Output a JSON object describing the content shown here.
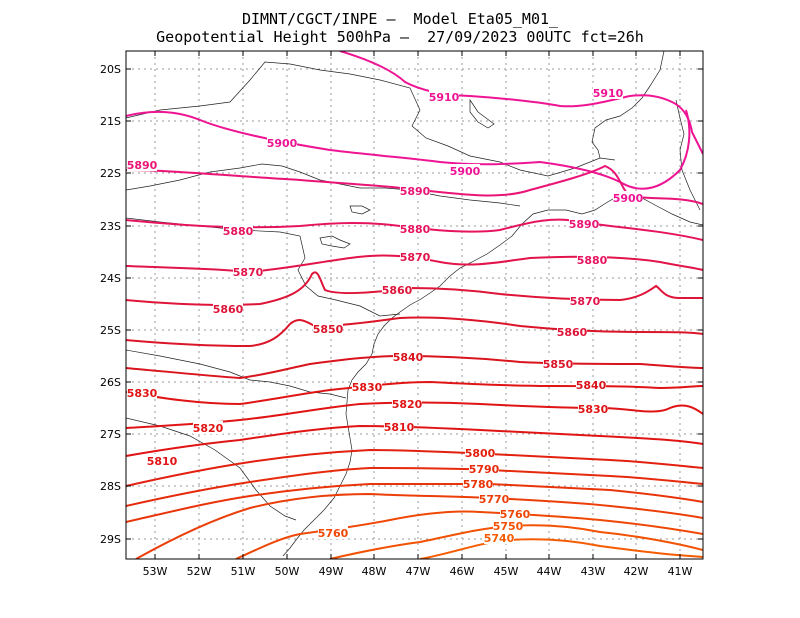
{
  "header": {
    "title_line1": "DIMNT/CGCT/INPE –  Model Eta05_M01_",
    "title_line2": "Geopotential Height 500hPa –  27/09/2023 00UTC fct=26h"
  },
  "map": {
    "lat_labels": [
      "20S",
      "21S",
      "22S",
      "23S",
      "24S",
      "25S",
      "26S",
      "27S",
      "28S",
      "29S"
    ],
    "lon_labels": [
      "53W",
      "52W",
      "51W",
      "50W",
      "49W",
      "48W",
      "47W",
      "46W",
      "45W",
      "44W",
      "43W",
      "42W",
      "41W"
    ]
  },
  "contours": [
    {
      "value": "5910",
      "color": "#ee1493",
      "labels": [
        "5910",
        "5910"
      ]
    },
    {
      "value": "5900",
      "color": "#ee1493",
      "labels": [
        "5900",
        "5900",
        "5900"
      ]
    },
    {
      "value": "5890",
      "color": "#ea1476",
      "labels": [
        "5890",
        "5890",
        "5890"
      ]
    },
    {
      "value": "5880",
      "color": "#e6145e",
      "labels": [
        "5880",
        "5880",
        "5880"
      ]
    },
    {
      "value": "5870",
      "color": "#e2144a",
      "labels": [
        "5870",
        "5870",
        "5870"
      ]
    },
    {
      "value": "5860",
      "color": "#de1438",
      "labels": [
        "5860",
        "5860",
        "5860"
      ]
    },
    {
      "value": "5850",
      "color": "#db1428",
      "labels": [
        "5850",
        "5850"
      ]
    },
    {
      "value": "5840",
      "color": "#d9141c",
      "labels": [
        "5840",
        "5840"
      ]
    },
    {
      "value": "5830",
      "color": "#e01414",
      "labels": [
        "5830",
        "5830",
        "5830"
      ]
    },
    {
      "value": "5820",
      "color": "#e01414",
      "labels": [
        "5820",
        "5820"
      ]
    },
    {
      "value": "5810",
      "color": "#e01414",
      "labels": [
        "5810",
        "5810"
      ]
    },
    {
      "value": "5800",
      "color": "#e3200f",
      "labels": [
        "5800"
      ]
    },
    {
      "value": "5790",
      "color": "#e62a0c",
      "labels": [
        "5790"
      ]
    },
    {
      "value": "5780",
      "color": "#e9340a",
      "labels": [
        "5780"
      ]
    },
    {
      "value": "5770",
      "color": "#ec3e08",
      "labels": [
        "5770"
      ]
    },
    {
      "value": "5760",
      "color": "#ef4806",
      "labels": [
        "5760",
        "5760"
      ]
    },
    {
      "value": "5750",
      "color": "#f25204",
      "labels": [
        "5750"
      ]
    },
    {
      "value": "5740",
      "color": "#f55c02",
      "labels": [
        "5740"
      ]
    }
  ]
}
